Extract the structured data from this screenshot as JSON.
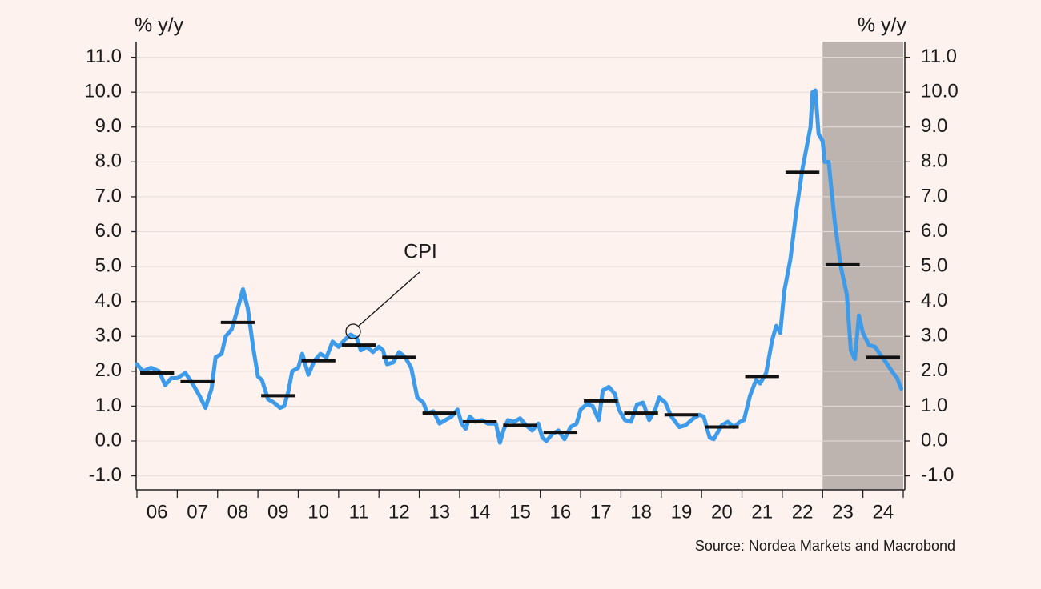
{
  "chart_data": {
    "type": "line",
    "y_axis_label": "% y/y",
    "y2_axis_label": "% y/y",
    "source": "Source: Nordea Markets and Macrobond",
    "xlim": [
      2006,
      2025
    ],
    "xticks": [
      {
        "value": 2006.5,
        "label": "06"
      },
      {
        "value": 2007.5,
        "label": "07"
      },
      {
        "value": 2008.5,
        "label": "08"
      },
      {
        "value": 2009.5,
        "label": "09"
      },
      {
        "value": 2010.5,
        "label": "10"
      },
      {
        "value": 2011.5,
        "label": "11"
      },
      {
        "value": 2012.5,
        "label": "12"
      },
      {
        "value": 2013.5,
        "label": "13"
      },
      {
        "value": 2014.5,
        "label": "14"
      },
      {
        "value": 2015.5,
        "label": "15"
      },
      {
        "value": 2016.5,
        "label": "16"
      },
      {
        "value": 2017.5,
        "label": "17"
      },
      {
        "value": 2018.5,
        "label": "18"
      },
      {
        "value": 2019.5,
        "label": "19"
      },
      {
        "value": 2020.5,
        "label": "20"
      },
      {
        "value": 2021.5,
        "label": "21"
      },
      {
        "value": 2022.5,
        "label": "22"
      },
      {
        "value": 2023.5,
        "label": "23"
      },
      {
        "value": 2024.5,
        "label": "24"
      }
    ],
    "minor_xticks": [
      2006,
      2007,
      2008,
      2009,
      2010,
      2011,
      2012,
      2013,
      2014,
      2015,
      2016,
      2017,
      2018,
      2019,
      2020,
      2021,
      2022,
      2023,
      2024,
      2025
    ],
    "ylim": [
      -1.4,
      11.45
    ],
    "yticks": [
      {
        "value": -1,
        "label": "-1.0"
      },
      {
        "value": 0,
        "label": "0.0"
      },
      {
        "value": 1,
        "label": "1.0"
      },
      {
        "value": 2,
        "label": "2.0"
      },
      {
        "value": 3,
        "label": "3.0"
      },
      {
        "value": 4,
        "label": "4.0"
      },
      {
        "value": 5,
        "label": "5.0"
      },
      {
        "value": 6,
        "label": "6.0"
      },
      {
        "value": 7,
        "label": "7.0"
      },
      {
        "value": 8,
        "label": "8.0"
      },
      {
        "value": 9,
        "label": "9.0"
      },
      {
        "value": 10,
        "label": "10.0"
      },
      {
        "value": 11,
        "label": "11.0"
      }
    ],
    "grid": true,
    "shade": {
      "xlim": [
        2023,
        2025
      ],
      "color": "#bdb4b0"
    },
    "series": [
      {
        "name": "CPI",
        "color": "#3d9be9",
        "x": [
          2006.0,
          2006.15,
          2006.35,
          2006.55,
          2006.7,
          2006.85,
          2007.0,
          2007.2,
          2007.35,
          2007.55,
          2007.7,
          2007.85,
          2007.95,
          2008.1,
          2008.2,
          2008.35,
          2008.5,
          2008.63,
          2008.75,
          2008.88,
          2009.0,
          2009.1,
          2009.25,
          2009.4,
          2009.55,
          2009.65,
          2009.75,
          2009.85,
          2010.0,
          2010.1,
          2010.25,
          2010.4,
          2010.55,
          2010.7,
          2010.85,
          2011.0,
          2011.15,
          2011.3,
          2011.45,
          2011.55,
          2011.7,
          2011.85,
          2012.0,
          2012.1,
          2012.2,
          2012.35,
          2012.5,
          2012.65,
          2012.8,
          2012.95,
          2013.1,
          2013.2,
          2013.35,
          2013.5,
          2013.65,
          2013.8,
          2013.95,
          2014.05,
          2014.15,
          2014.25,
          2014.4,
          2014.55,
          2014.7,
          2014.9,
          2015.0,
          2015.1,
          2015.2,
          2015.35,
          2015.5,
          2015.65,
          2015.8,
          2015.95,
          2016.05,
          2016.15,
          2016.3,
          2016.45,
          2016.6,
          2016.75,
          2016.9,
          2017.0,
          2017.15,
          2017.3,
          2017.45,
          2017.55,
          2017.7,
          2017.85,
          2017.95,
          2018.1,
          2018.25,
          2018.4,
          2018.55,
          2018.7,
          2018.85,
          2018.95,
          2019.1,
          2019.25,
          2019.45,
          2019.6,
          2019.8,
          2019.95,
          2020.05,
          2020.2,
          2020.3,
          2020.5,
          2020.65,
          2020.8,
          2020.95,
          2021.05,
          2021.2,
          2021.35,
          2021.45,
          2021.6,
          2021.75,
          2021.85,
          2021.95,
          2022.05,
          2022.2,
          2022.35,
          2022.5,
          2022.65,
          2022.7,
          2022.75,
          2022.82,
          2022.9,
          2023.0,
          2023.05,
          2023.15,
          2023.3,
          2023.45,
          2023.6,
          2023.7,
          2023.8,
          2023.9,
          2024.0,
          2024.15,
          2024.3,
          2024.45,
          2024.6,
          2024.75,
          2024.85,
          2024.95
        ],
        "values": [
          2.2,
          2.0,
          2.1,
          2.0,
          1.6,
          1.8,
          1.8,
          1.95,
          1.7,
          1.3,
          0.95,
          1.5,
          2.4,
          2.5,
          3.0,
          3.2,
          3.8,
          4.35,
          3.8,
          2.7,
          1.85,
          1.75,
          1.2,
          1.1,
          0.95,
          1.0,
          1.4,
          2.0,
          2.1,
          2.5,
          1.9,
          2.3,
          2.5,
          2.4,
          2.85,
          2.7,
          2.9,
          3.05,
          2.95,
          2.6,
          2.7,
          2.55,
          2.7,
          2.6,
          2.2,
          2.25,
          2.55,
          2.4,
          2.1,
          1.25,
          1.1,
          0.8,
          0.85,
          0.5,
          0.6,
          0.7,
          0.9,
          0.5,
          0.35,
          0.7,
          0.55,
          0.6,
          0.5,
          0.5,
          -0.05,
          0.35,
          0.6,
          0.55,
          0.65,
          0.45,
          0.3,
          0.5,
          0.1,
          0.0,
          0.2,
          0.3,
          0.05,
          0.4,
          0.5,
          0.9,
          1.05,
          1.0,
          0.6,
          1.45,
          1.55,
          1.35,
          0.9,
          0.6,
          0.55,
          1.05,
          1.1,
          0.6,
          0.9,
          1.25,
          1.1,
          0.7,
          0.4,
          0.45,
          0.65,
          0.75,
          0.7,
          0.1,
          0.05,
          0.45,
          0.55,
          0.4,
          0.55,
          0.6,
          1.3,
          1.75,
          1.65,
          1.95,
          2.9,
          3.3,
          3.1,
          4.3,
          5.2,
          6.6,
          7.8,
          8.7,
          9.0,
          10.0,
          10.05,
          8.8,
          8.6,
          8.0,
          8.0,
          6.3,
          5.0,
          4.2,
          2.6,
          2.35,
          3.6,
          3.1,
          2.75,
          2.7,
          2.45,
          2.2,
          1.95,
          1.8,
          1.5
        ]
      }
    ],
    "averages": {
      "color": "#111111",
      "x": [
        2006,
        2007,
        2008,
        2009,
        2010,
        2011,
        2012,
        2013,
        2014,
        2015,
        2016,
        2017,
        2018,
        2019,
        2020,
        2021,
        2022,
        2023,
        2024
      ],
      "values": [
        1.95,
        1.7,
        3.4,
        1.3,
        2.3,
        2.75,
        2.4,
        0.8,
        0.55,
        0.45,
        0.25,
        1.15,
        0.8,
        0.75,
        0.4,
        1.85,
        7.7,
        5.05,
        2.4
      ]
    }
  }
}
